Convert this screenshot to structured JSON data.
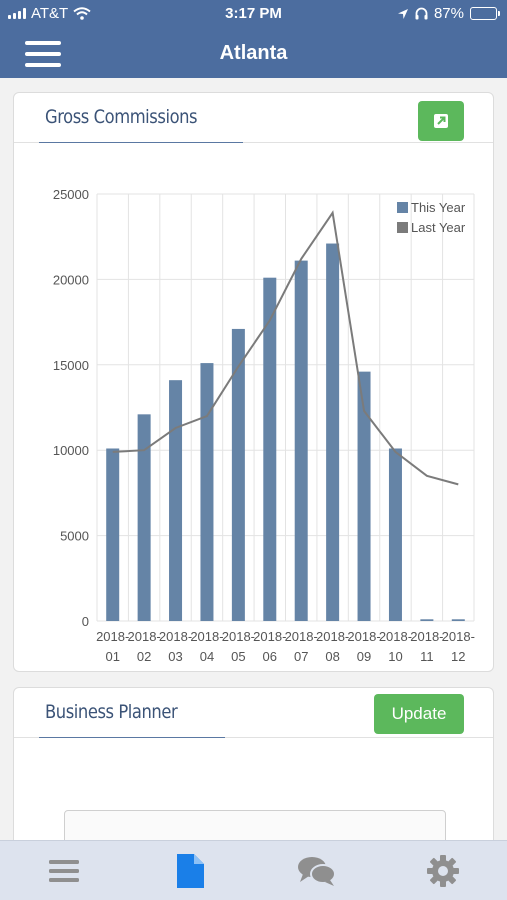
{
  "status_bar": {
    "carrier": "AT&T",
    "time": "3:17 PM",
    "battery": "87%",
    "battery_level": 0.87
  },
  "nav": {
    "title": "Atlanta"
  },
  "gross_card": {
    "title": "Gross Commissions",
    "expand_icon": "external-link-icon"
  },
  "planner_card": {
    "title": "Business Planner",
    "update_label": "Update"
  },
  "tabs": [
    {
      "icon": "list-icon",
      "active": false
    },
    {
      "icon": "document-icon",
      "active": true
    },
    {
      "icon": "chat-icon",
      "active": false
    },
    {
      "icon": "gear-icon",
      "active": false
    }
  ],
  "colors": {
    "header": "#4c6d9f",
    "this_year": "#6584a6",
    "last_year": "#7b7b7b",
    "green": "#5cb85c",
    "active_tab": "#1a7fe8",
    "inactive_tab": "#8f8f8f"
  },
  "chart_data": {
    "type": "bar",
    "categories": [
      "2018-01",
      "2018-02",
      "2018-03",
      "2018-04",
      "2018-05",
      "2018-06",
      "2018-07",
      "2018-08",
      "2018-09",
      "2018-10",
      "2018-11",
      "2018-12"
    ],
    "series": [
      {
        "name": "This Year",
        "type": "bar",
        "values": [
          10100,
          12100,
          14100,
          15100,
          17100,
          20100,
          21100,
          22100,
          14600,
          10100,
          100,
          100
        ]
      },
      {
        "name": "Last Year",
        "type": "line",
        "values": [
          9900,
          10000,
          11300,
          12000,
          14900,
          17600,
          21200,
          23900,
          12300,
          9900,
          8500,
          8000
        ]
      }
    ],
    "ylim": [
      0,
      25000
    ],
    "yticks": [
      "0",
      "5000",
      "10000",
      "15000",
      "20000",
      "25000"
    ],
    "grid": true,
    "legend": "top-right"
  }
}
